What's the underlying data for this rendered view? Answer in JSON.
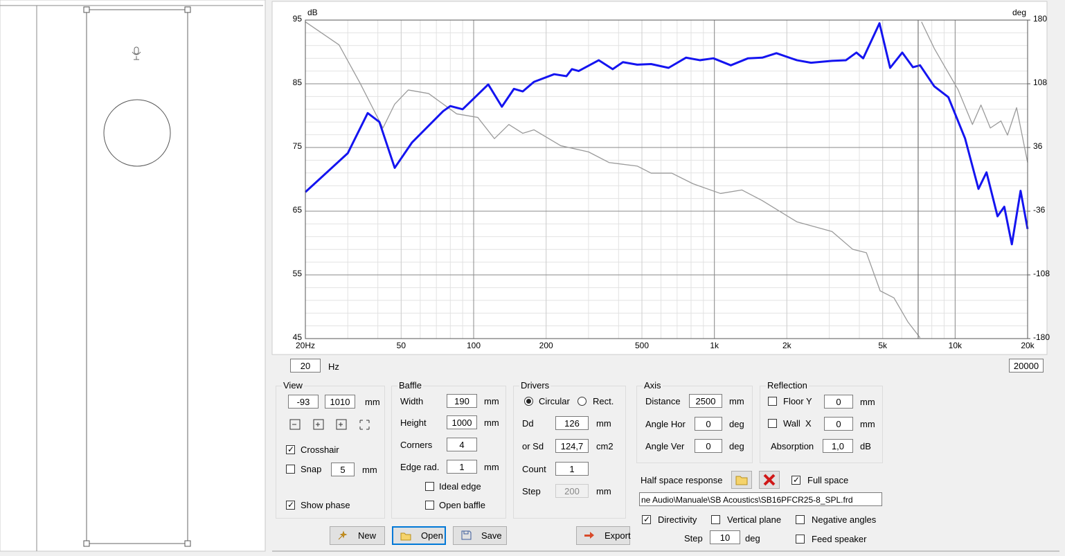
{
  "chart_data": {
    "type": "line",
    "xscale": "log",
    "ylabel": "dB",
    "y2label": "deg",
    "xlim": [
      20,
      20000
    ],
    "ylim": [
      45,
      95
    ],
    "y2lim": [
      -180,
      180
    ],
    "xticks": [
      {
        "value": 20,
        "label": "20Hz"
      },
      50,
      100,
      200,
      500,
      {
        "value": 1000,
        "label": "1k"
      },
      {
        "value": 2000,
        "label": "2k"
      },
      {
        "value": 5000,
        "label": "5k"
      },
      {
        "value": 10000,
        "label": "10k"
      },
      {
        "value": 20000,
        "label": "20k"
      }
    ],
    "yticks": [
      45,
      55,
      65,
      75,
      85,
      95
    ],
    "y2ticks": [
      -180,
      -108,
      -36,
      36,
      108,
      180
    ],
    "grid": true,
    "series": [
      {
        "color": "#1414f0",
        "x": [
          20,
          30,
          36.3,
          40.6,
          47,
          55.5,
          74.7,
          80,
          90,
          115,
          131,
          147,
          160,
          178,
          216,
          243,
          256,
          273,
          331,
          378,
          417,
          478,
          546,
          645,
          762,
          870,
          990,
          1170,
          1380,
          1580,
          1810,
          2200,
          2520,
          3080,
          3520,
          3890,
          4150,
          4850,
          5370,
          6030,
          6680,
          7150,
          8190,
          9370,
          11000,
          12500,
          13500,
          15000,
          16000,
          17200,
          18700,
          20000
        ],
        "values": [
          68,
          74.1,
          80.4,
          79,
          71.8,
          75.8,
          80.7,
          81.5,
          81,
          84.9,
          81.4,
          84.2,
          83.8,
          85.3,
          86.5,
          86.2,
          87.3,
          87,
          88.7,
          87.3,
          88.4,
          88,
          88.1,
          87.5,
          89.1,
          88.7,
          89,
          87.9,
          89,
          89.1,
          89.8,
          88.7,
          88.3,
          88.6,
          88.7,
          89.9,
          89,
          94.5,
          87.5,
          89.9,
          87.6,
          87.9,
          84.6,
          82.9,
          76.4,
          68.5,
          71.1,
          64.2,
          65.7,
          59.8,
          68.2,
          62.2
        ]
      },
      {
        "color": "#9a9a9a",
        "axis": "y2",
        "x": [
          20,
          27.6,
          33.7,
          42,
          47,
          53.5,
          65,
          85,
          104,
          122,
          140,
          160,
          178,
          230,
          300,
          365,
          478,
          546,
          665,
          815,
          1060,
          1300,
          1580,
          2200,
          3080,
          3750,
          4280,
          4880,
          5570,
          6360,
          7150,
          7200,
          7250,
          8190,
          10300,
          11800,
          12800,
          14000,
          15500,
          16500,
          18000,
          20000
        ],
        "values": [
          178,
          152,
          109,
          58,
          85,
          101,
          97,
          74,
          70,
          46,
          62,
          52,
          56,
          38,
          31,
          19,
          15,
          7,
          7,
          -5,
          -16,
          -12,
          -24,
          -48,
          -59,
          -79,
          -83,
          -126,
          -134,
          -161,
          -179,
          null,
          178,
          148,
          101,
          62,
          84,
          58,
          66,
          50,
          81,
          19
        ]
      }
    ]
  },
  "frequency_range": {
    "min": "20",
    "unit": "Hz",
    "max": "20000"
  },
  "view": {
    "title": "View",
    "offset_x": "-93",
    "offset_y": "1010",
    "unit": "mm",
    "crosshair": {
      "label": "Crosshair",
      "checked": true
    },
    "snap": {
      "label": "Snap",
      "checked": false
    },
    "snap_value": "5",
    "snap_unit": "mm",
    "show_phase": {
      "label": "Show phase",
      "checked": true
    }
  },
  "baffle": {
    "title": "Baffle",
    "width": {
      "label": "Width",
      "value": "190",
      "unit": "mm"
    },
    "height": {
      "label": "Height",
      "value": "1000",
      "unit": "mm"
    },
    "corners": {
      "label": "Corners",
      "value": "4"
    },
    "edge_radius": {
      "label": "Edge rad.",
      "value": "1",
      "unit": "mm"
    },
    "ideal_edge": {
      "label": "Ideal edge",
      "checked": false
    },
    "open_baffle": {
      "label": "Open baffle",
      "checked": false
    }
  },
  "drivers": {
    "title": "Drivers",
    "circular": {
      "label": "Circular",
      "selected": true
    },
    "rect": {
      "label": "Rect.",
      "selected": false
    },
    "dd": {
      "label": "Dd",
      "value": "126",
      "unit": "mm"
    },
    "sd": {
      "label": "or Sd",
      "value": "124,7",
      "unit": "cm2"
    },
    "count": {
      "label": "Count",
      "value": "1"
    },
    "step": {
      "label": "Step",
      "value": "200",
      "unit": "mm"
    }
  },
  "axis": {
    "title": "Axis",
    "distance": {
      "label": "Distance",
      "value": "2500",
      "unit": "mm"
    },
    "angle_hor": {
      "label": "Angle Hor",
      "value": "0",
      "unit": "deg"
    },
    "angle_ver": {
      "label": "Angle Ver",
      "value": "0",
      "unit": "deg"
    }
  },
  "reflection": {
    "title": "Reflection",
    "floor": {
      "label": "Floor Y",
      "checked": false,
      "value": "0",
      "unit": "mm"
    },
    "wall": {
      "label": "Wall  X",
      "checked": false,
      "value": "0",
      "unit": "mm"
    },
    "absorption": {
      "label": "Absorption",
      "value": "1,0",
      "unit": "dB"
    }
  },
  "half_space": {
    "label": "Half space response",
    "full_space": {
      "label": "Full space",
      "checked": true
    },
    "file": "ne Audio\\Manuale\\SB Acoustics\\SB16PFCR25-8_SPL.frd"
  },
  "directivity": {
    "directivity": {
      "label": "Directivity",
      "checked": true
    },
    "vertical_plane": {
      "label": "Vertical plane",
      "checked": false
    },
    "negative_angles": {
      "label": "Negative angles",
      "checked": false
    },
    "step": {
      "label": "Step",
      "value": "10",
      "unit": "deg"
    },
    "feed_speaker": {
      "label": "Feed speaker",
      "checked": false
    }
  },
  "buttons": {
    "new": "New",
    "open": "Open",
    "save": "Save",
    "export": "Export"
  }
}
